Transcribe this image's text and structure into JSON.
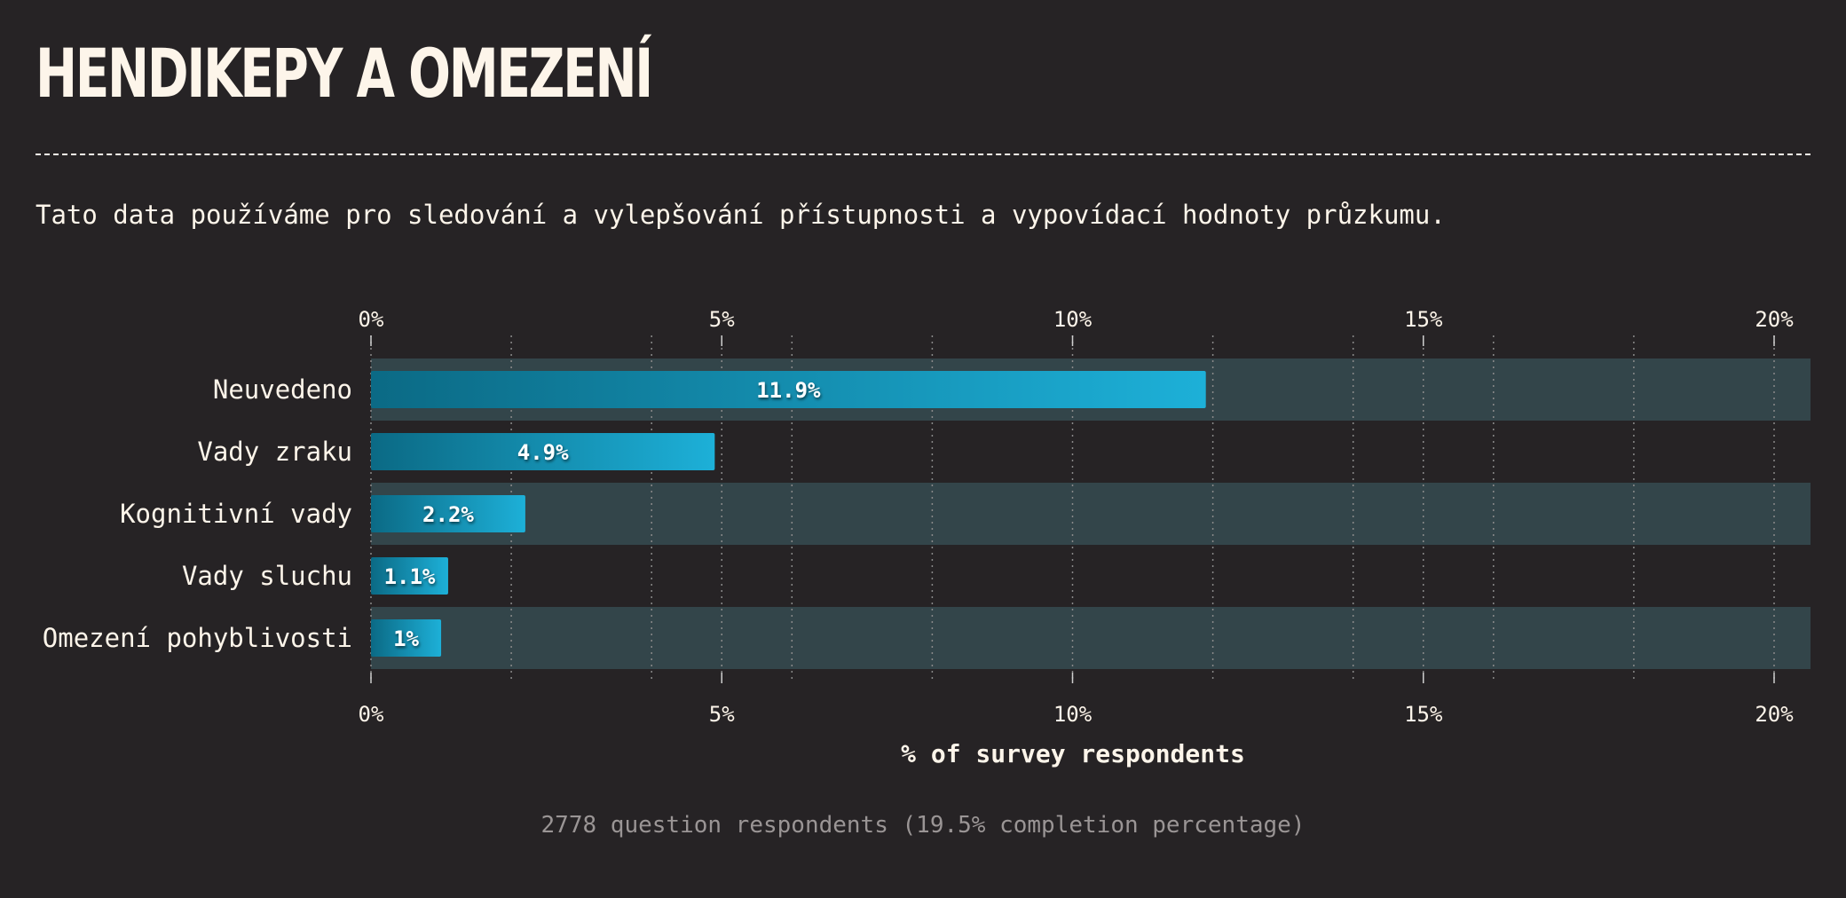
{
  "header": {
    "title": "HENDIKEPY A OMEZENÍ",
    "description": "Tato data používáme pro sledování a vylepšování přístupnosti a vypovídací hodnoty průzkumu."
  },
  "chart_data": {
    "type": "bar",
    "orientation": "horizontal",
    "categories": [
      "Neuvedeno",
      "Vady zraku",
      "Kognitivní vady",
      "Vady sluchu",
      "Omezení pohyblivosti"
    ],
    "values": [
      11.9,
      4.9,
      2.2,
      1.1,
      1.0
    ],
    "value_labels": [
      "11.9%",
      "4.9%",
      "2.2%",
      "1.1%",
      "1%"
    ],
    "xlim": [
      0,
      20.5
    ],
    "ticks": [
      0,
      5,
      10,
      15,
      20
    ],
    "tick_labels": [
      "0%",
      "5%",
      "10%",
      "15%",
      "20%"
    ],
    "minor_gridlines": [
      2,
      4,
      6,
      8,
      12,
      14,
      16,
      18
    ],
    "xlabel": "% of survey respondents",
    "ylabel": "",
    "grid": true,
    "axis_labels_position": "top and bottom",
    "colors": {
      "bar_start": "#0b6a85",
      "bar_end": "#1db0d8",
      "row_band": "#33454a",
      "grid": "#8a8a8a",
      "text": "#fdf5ea"
    }
  },
  "footer": {
    "note": "2778 question respondents (19.5% completion percentage)"
  }
}
